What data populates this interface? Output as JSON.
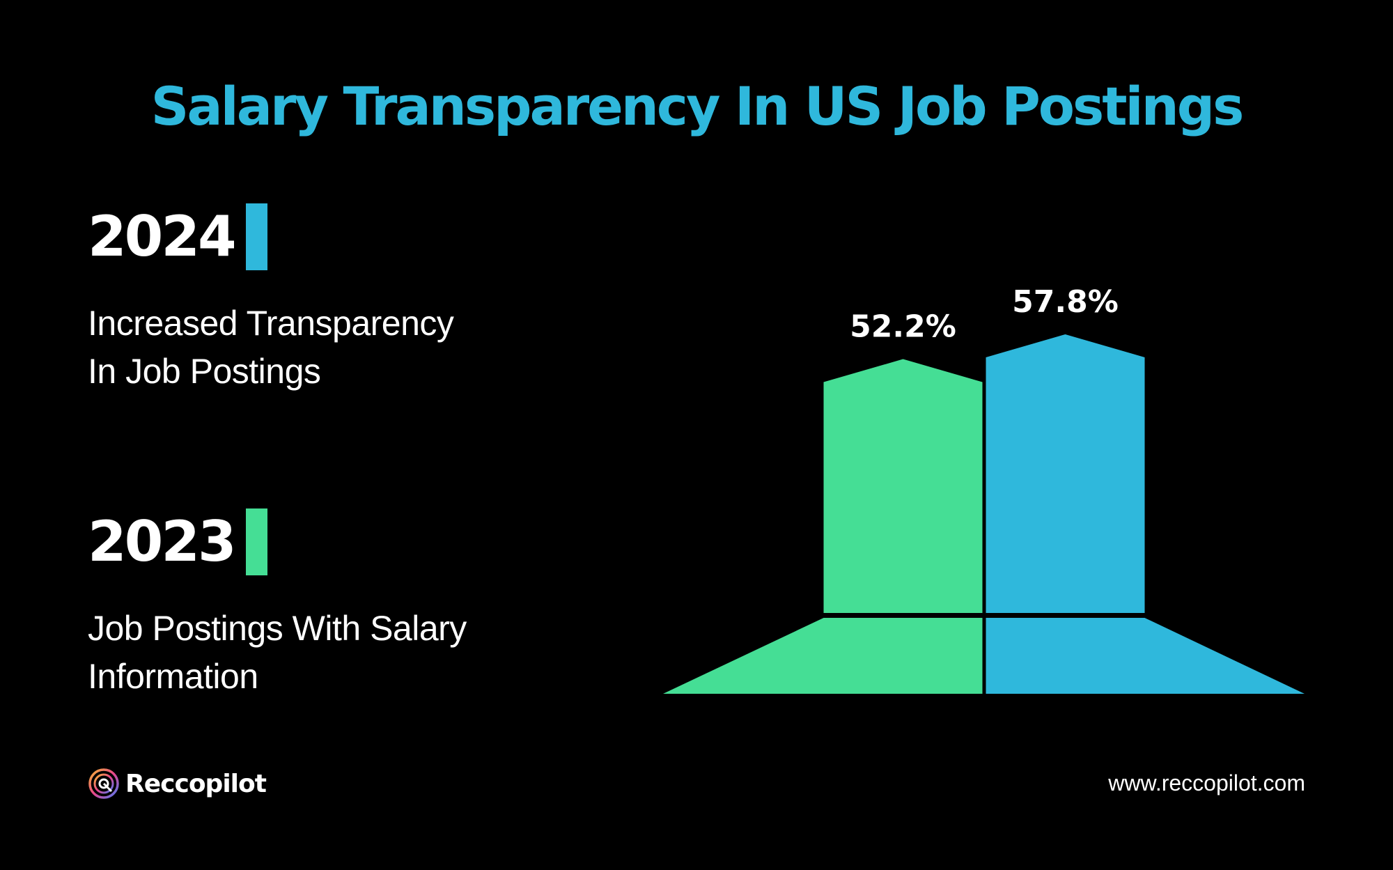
{
  "title": "Salary Transparency In US Job Postings",
  "colors": {
    "background": "#000000",
    "title": "#2fb8dc",
    "series_2024": "#2fb8dc",
    "series_2023": "#45de95",
    "text": "#ffffff"
  },
  "legend": [
    {
      "year": "2024",
      "description_line1": "Increased Transparency",
      "description_line2": "In Job Postings"
    },
    {
      "year": "2023",
      "description_line1": "Job Postings With Salary",
      "description_line2": "Information"
    }
  ],
  "chart_data": {
    "type": "bar",
    "title": "Salary Transparency In US Job Postings",
    "categories": [
      "2023",
      "2024"
    ],
    "values": [
      52.2,
      57.8
    ],
    "value_labels": [
      "52.2%",
      "57.8%"
    ],
    "unit": "%"
  },
  "footer": {
    "brand": "Reccopilot",
    "logo_icon": "reccopilot-logo-icon",
    "url": "www.reccopilot.com"
  }
}
